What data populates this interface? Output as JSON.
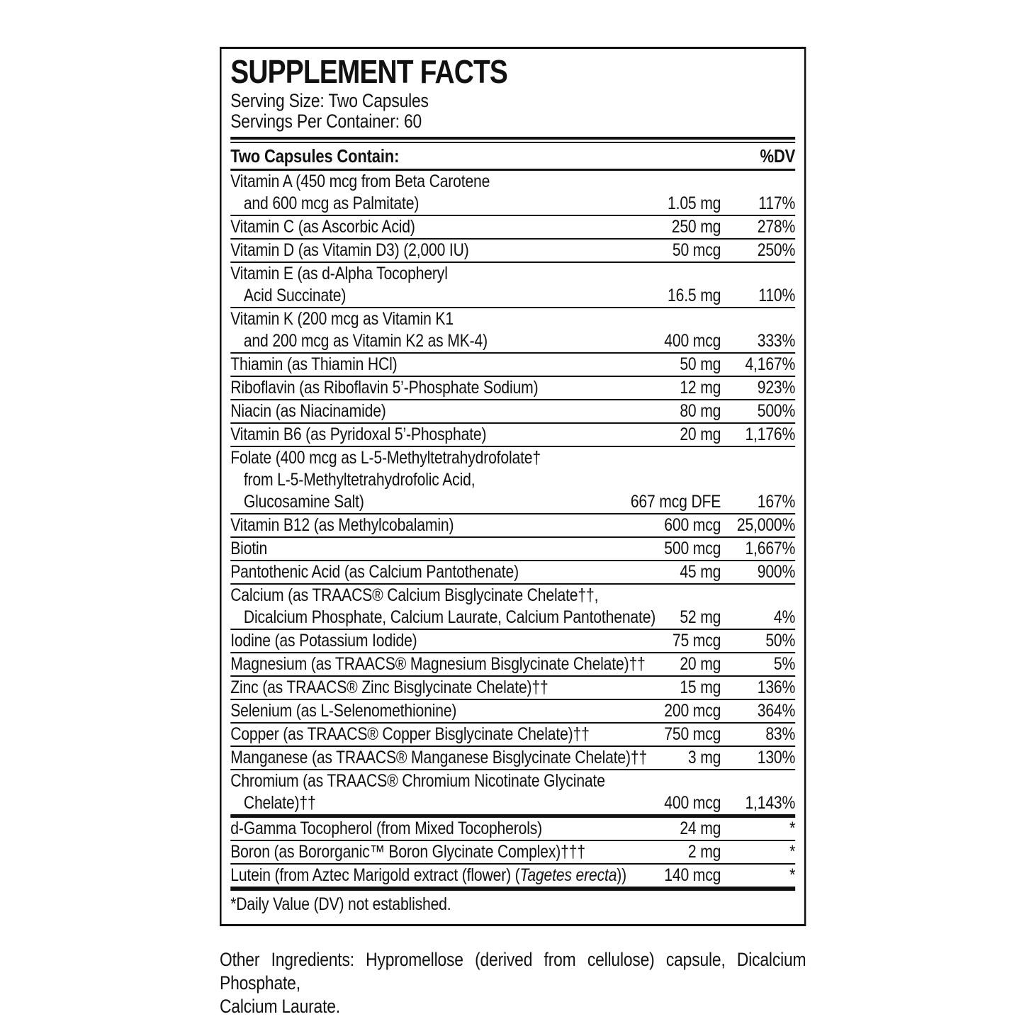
{
  "label": {
    "title": "SUPPLEMENT FACTS",
    "serving_size": "Serving Size: Two Capsules",
    "servings_per_container": "Servings Per Container: 60",
    "header": {
      "left": "Two Capsules Contain:",
      "right": "%DV"
    },
    "rows": [
      {
        "lines": [
          [
            {
              "t": "Vitamin A (450 mcg from Beta Carotene"
            }
          ],
          [
            {
              "t": "and 600 mcg as Palmitate)"
            }
          ]
        ],
        "amount": "1.05 mg",
        "dv": "117%"
      },
      {
        "lines": [
          [
            {
              "t": "Vitamin C (as Ascorbic Acid)"
            }
          ]
        ],
        "amount": "250 mg",
        "dv": "278%"
      },
      {
        "lines": [
          [
            {
              "t": "Vitamin D (as Vitamin D3) (2,000 IU)"
            }
          ]
        ],
        "amount": "50 mcg",
        "dv": "250%"
      },
      {
        "lines": [
          [
            {
              "t": "Vitamin E (as d-Alpha Tocopheryl"
            }
          ],
          [
            {
              "t": "Acid Succinate)"
            }
          ]
        ],
        "amount": "16.5 mg",
        "dv": "110%"
      },
      {
        "lines": [
          [
            {
              "t": "Vitamin K (200 mcg as Vitamin K1"
            }
          ],
          [
            {
              "t": "and 200 mcg as Vitamin K2 as MK-4)"
            }
          ]
        ],
        "amount": "400 mcg",
        "dv": "333%"
      },
      {
        "lines": [
          [
            {
              "t": "Thiamin (as Thiamin HCl)"
            }
          ]
        ],
        "amount": "50 mg",
        "dv": "4,167%"
      },
      {
        "lines": [
          [
            {
              "t": "Riboflavin (as Riboflavin 5’-Phosphate Sodium)"
            }
          ]
        ],
        "amount": "12 mg",
        "dv": "923%"
      },
      {
        "lines": [
          [
            {
              "t": "Niacin (as Niacinamide)"
            }
          ]
        ],
        "amount": "80 mg",
        "dv": "500%"
      },
      {
        "lines": [
          [
            {
              "t": "Vitamin B6 (as Pyridoxal 5’-Phosphate)"
            }
          ]
        ],
        "amount": "20 mg",
        "dv": "1,176%"
      },
      {
        "lines": [
          [
            {
              "t": "Folate (400 mcg as L-5-Methyltetrahydrofolate†"
            }
          ],
          [
            {
              "t": "from L-5-Methyltetrahydrofolic Acid,"
            }
          ],
          [
            {
              "t": "Glucosamine Salt)"
            }
          ]
        ],
        "amount": "667 mcg DFE",
        "dv": "167%"
      },
      {
        "lines": [
          [
            {
              "t": "Vitamin B12 (as Methylcobalamin)"
            }
          ]
        ],
        "amount": "600 mcg",
        "dv": "25,000%"
      },
      {
        "lines": [
          [
            {
              "t": "Biotin"
            }
          ]
        ],
        "amount": "500 mcg",
        "dv": "1,667%"
      },
      {
        "lines": [
          [
            {
              "t": "Pantothenic Acid (as Calcium Pantothenate)"
            }
          ]
        ],
        "amount": "45 mg",
        "dv": "900%"
      },
      {
        "lines": [
          [
            {
              "t": "Calcium (as TRAACS® Calcium Bisglycinate Chelate††,"
            }
          ],
          [
            {
              "t": "Dicalcium Phosphate, Calcium Laurate, Calcium Pantothenate)"
            }
          ]
        ],
        "amount": "52 mg",
        "dv": "4%"
      },
      {
        "lines": [
          [
            {
              "t": "Iodine (as Potassium Iodide)"
            }
          ]
        ],
        "amount": "75 mcg",
        "dv": "50%"
      },
      {
        "lines": [
          [
            {
              "t": "Magnesium (as TRAACS® Magnesium Bisglycinate Chelate)††"
            }
          ]
        ],
        "amount": "20 mg",
        "dv": "5%"
      },
      {
        "lines": [
          [
            {
              "t": "Zinc (as TRAACS® Zinc Bisglycinate Chelate)††"
            }
          ]
        ],
        "amount": "15 mg",
        "dv": "136%"
      },
      {
        "lines": [
          [
            {
              "t": "Selenium (as L-Selenomethionine)"
            }
          ]
        ],
        "amount": "200 mcg",
        "dv": "364%"
      },
      {
        "lines": [
          [
            {
              "t": "Copper (as TRAACS® Copper Bisglycinate Chelate)††"
            }
          ]
        ],
        "amount": "750 mcg",
        "dv": "83%"
      },
      {
        "lines": [
          [
            {
              "t": "Manganese (as TRAACS® Manganese Bisglycinate Chelate)††"
            }
          ]
        ],
        "amount": "3 mg",
        "dv": "130%"
      },
      {
        "lines": [
          [
            {
              "t": "Chromium (as TRAACS® Chromium Nicotinate Glycinate"
            }
          ],
          [
            {
              "t": "Chelate)††"
            }
          ]
        ],
        "amount": "400 mcg",
        "dv": "1,143%"
      },
      {
        "bar_before": "thick5",
        "lines": [
          [
            {
              "t": "d-Gamma Tocopherol (from Mixed Tocopherols)"
            }
          ]
        ],
        "amount": "24 mg",
        "dv": "*"
      },
      {
        "lines": [
          [
            {
              "t": "Boron (as Bororganic™ Boron Glycinate Complex)†††"
            }
          ]
        ],
        "amount": "2 mg",
        "dv": "*"
      },
      {
        "lines": [
          [
            {
              "t": "Lutein (from Aztec Marigold extract (flower) ("
            },
            {
              "t": "Tagetes erecta",
              "i": true
            },
            {
              "t": "))"
            }
          ]
        ],
        "amount": "140 mcg",
        "dv": "*"
      }
    ],
    "footnote": "*Daily Value (DV) not established."
  },
  "ingredients": {
    "lines": [
      "Other Ingredients: Hypromellose (derived from cellulose) capsule, Dicalcium Phosphate,",
      "Calcium Laurate."
    ]
  }
}
